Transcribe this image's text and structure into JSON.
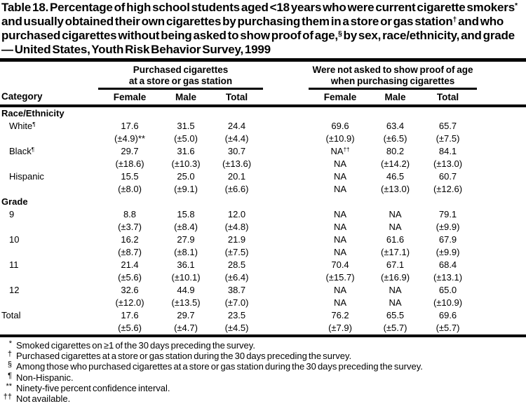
{
  "page": {
    "background": "#ffffff",
    "text_color": "#000000"
  },
  "title": "Table 18. Percentage of high school students aged <18 years who were current cigarette smokers^{*} and usually obtained their own cigarettes by purchasing them in a store or gas station^{†} and who purchased cigarettes without being asked to show proof of age,^{§} by sex, race/ethnicity, and grade — United States, Youth Risk Behavior Survey, 1999",
  "table": {
    "category_header": "Category",
    "groups": [
      {
        "line1": "Purchased cigarettes",
        "line2": "at a store or gas station",
        "columns": [
          "Female",
          "Male",
          "Total"
        ]
      },
      {
        "line1": "Were not asked to show proof of age",
        "line2": "when purchasing cigarettes",
        "columns": [
          "Female",
          "Male",
          "Total"
        ]
      }
    ],
    "sections": [
      {
        "heading": "Race/Ethnicity",
        "rows": [
          {
            "label": "White^{¶}",
            "values": [
              "17.6",
              "31.5",
              "24.4",
              "69.6",
              "63.4",
              "65.7"
            ],
            "ci": [
              "(±4.9)**",
              "(±5.0)",
              "(±4.4)",
              "(±10.9)",
              "(±6.5)",
              "(±7.5)"
            ]
          },
          {
            "label": "Black^{¶}",
            "values": [
              "29.7",
              "31.6",
              "30.7",
              "NA^{††}",
              "80.2",
              "84.1"
            ],
            "ci": [
              "(±18.6)",
              "(±10.3)",
              "(±13.6)",
              "NA",
              "(±14.2)",
              "(±13.0)"
            ]
          },
          {
            "label": "Hispanic",
            "values": [
              "15.5",
              "25.0",
              "20.1",
              "NA",
              "46.5",
              "60.7"
            ],
            "ci": [
              "(±8.0)",
              "(±9.1)",
              "(±6.6)",
              "NA",
              "(±13.0)",
              "(±12.6)"
            ]
          }
        ]
      },
      {
        "heading": "Grade",
        "rows": [
          {
            "label": "9",
            "values": [
              "8.8",
              "15.8",
              "12.0",
              "NA",
              "NA",
              "79.1"
            ],
            "ci": [
              "(±3.7)",
              "(±8.4)",
              "(±4.8)",
              "NA",
              "NA",
              "(±9.9)"
            ]
          },
          {
            "label": "10",
            "values": [
              "16.2",
              "27.9",
              "21.9",
              "NA",
              "61.6",
              "67.9"
            ],
            "ci": [
              "(±8.7)",
              "(±8.1)",
              "(±7.5)",
              "NA",
              "(±17.1)",
              "(±9.9)"
            ]
          },
          {
            "label": "11",
            "values": [
              "21.4",
              "36.1",
              "28.5",
              "70.4",
              "67.1",
              "68.4"
            ],
            "ci": [
              "(±5.6)",
              "(±10.1)",
              "(±6.4)",
              "(±15.7)",
              "(±16.9)",
              "(±13.1)"
            ]
          },
          {
            "label": "12",
            "values": [
              "32.6",
              "44.9",
              "38.7",
              "NA",
              "NA",
              "65.0"
            ],
            "ci": [
              "(±12.0)",
              "(±13.5)",
              "(±7.0)",
              "NA",
              "NA",
              "(±10.9)"
            ]
          }
        ]
      }
    ],
    "total_row": {
      "label": "Total",
      "values": [
        "17.6",
        "29.7",
        "23.5",
        "76.2",
        "65.5",
        "69.6"
      ],
      "ci": [
        "(±5.6)",
        "(±4.7)",
        "(±4.5)",
        "(±7.9)",
        "(±5.7)",
        "(±5.7)"
      ]
    }
  },
  "footnotes": [
    {
      "marker": "*",
      "text": "Smoked cigarettes on ≥1 of the 30 days preceding the survey."
    },
    {
      "marker": "†",
      "text": "Purchased cigarettes at a store or gas station during the 30 days preceding the survey."
    },
    {
      "marker": "§",
      "text": "Among those who purchased cigarettes at a store or gas station during the 30 days preceding the survey."
    },
    {
      "marker": "¶",
      "text": "Non-Hispanic."
    },
    {
      "marker": "**",
      "text": "Ninety-five percent confidence interval."
    },
    {
      "marker": "††",
      "text": "Not available."
    }
  ]
}
